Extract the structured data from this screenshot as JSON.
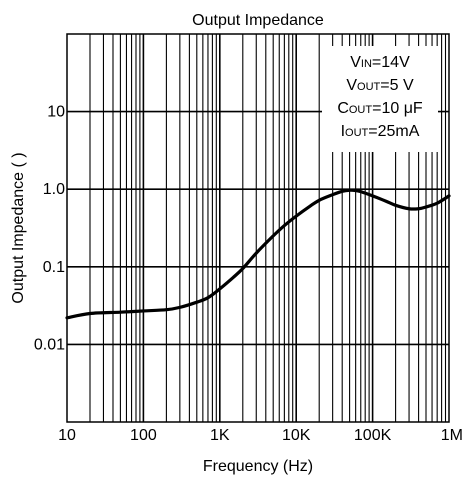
{
  "chart_data": {
    "type": "line",
    "title": "Output Impedance",
    "xlabel": "Frequency (Hz)",
    "ylabel": "Output Impedance (  )",
    "x_scale": "log",
    "y_scale": "log",
    "xlim": [
      10,
      1000000
    ],
    "ylim": [
      0.001,
      100
    ],
    "grid": true,
    "x_ticks": [
      {
        "value": 10,
        "label": "10"
      },
      {
        "value": 100,
        "label": "100"
      },
      {
        "value": 1000,
        "label": "1K"
      },
      {
        "value": 10000,
        "label": "10K"
      },
      {
        "value": 100000,
        "label": "100K"
      },
      {
        "value": 1000000,
        "label": "1M"
      }
    ],
    "y_ticks": [
      {
        "value": 0.01,
        "label": "0.01"
      },
      {
        "value": 0.1,
        "label": "0.1"
      },
      {
        "value": 1,
        "label": "1.0"
      },
      {
        "value": 10,
        "label": "10"
      }
    ],
    "conditions": [
      {
        "main": "V",
        "sub": "IN",
        "rest": "=14V"
      },
      {
        "main": "V",
        "sub": "OUT",
        "rest": "=5 V"
      },
      {
        "main": "C",
        "sub": "OUT",
        "rest": "=10 μF"
      },
      {
        "main": "I",
        "sub": "OUT",
        "rest": "=25mA"
      }
    ],
    "series": [
      {
        "x": [
          10,
          20,
          50,
          100,
          200,
          300,
          500,
          700,
          1000,
          1500,
          2000,
          3000,
          5000,
          7000,
          10000,
          15000,
          20000,
          30000,
          40000,
          50000,
          60000,
          70000,
          100000,
          150000,
          200000,
          300000,
          400000,
          500000,
          700000,
          1000000
        ],
        "y": [
          0.022,
          0.025,
          0.026,
          0.027,
          0.028,
          0.03,
          0.035,
          0.04,
          0.052,
          0.073,
          0.095,
          0.15,
          0.25,
          0.34,
          0.45,
          0.6,
          0.72,
          0.85,
          0.94,
          0.97,
          0.96,
          0.93,
          0.82,
          0.7,
          0.62,
          0.56,
          0.56,
          0.59,
          0.66,
          0.82
        ]
      }
    ]
  }
}
